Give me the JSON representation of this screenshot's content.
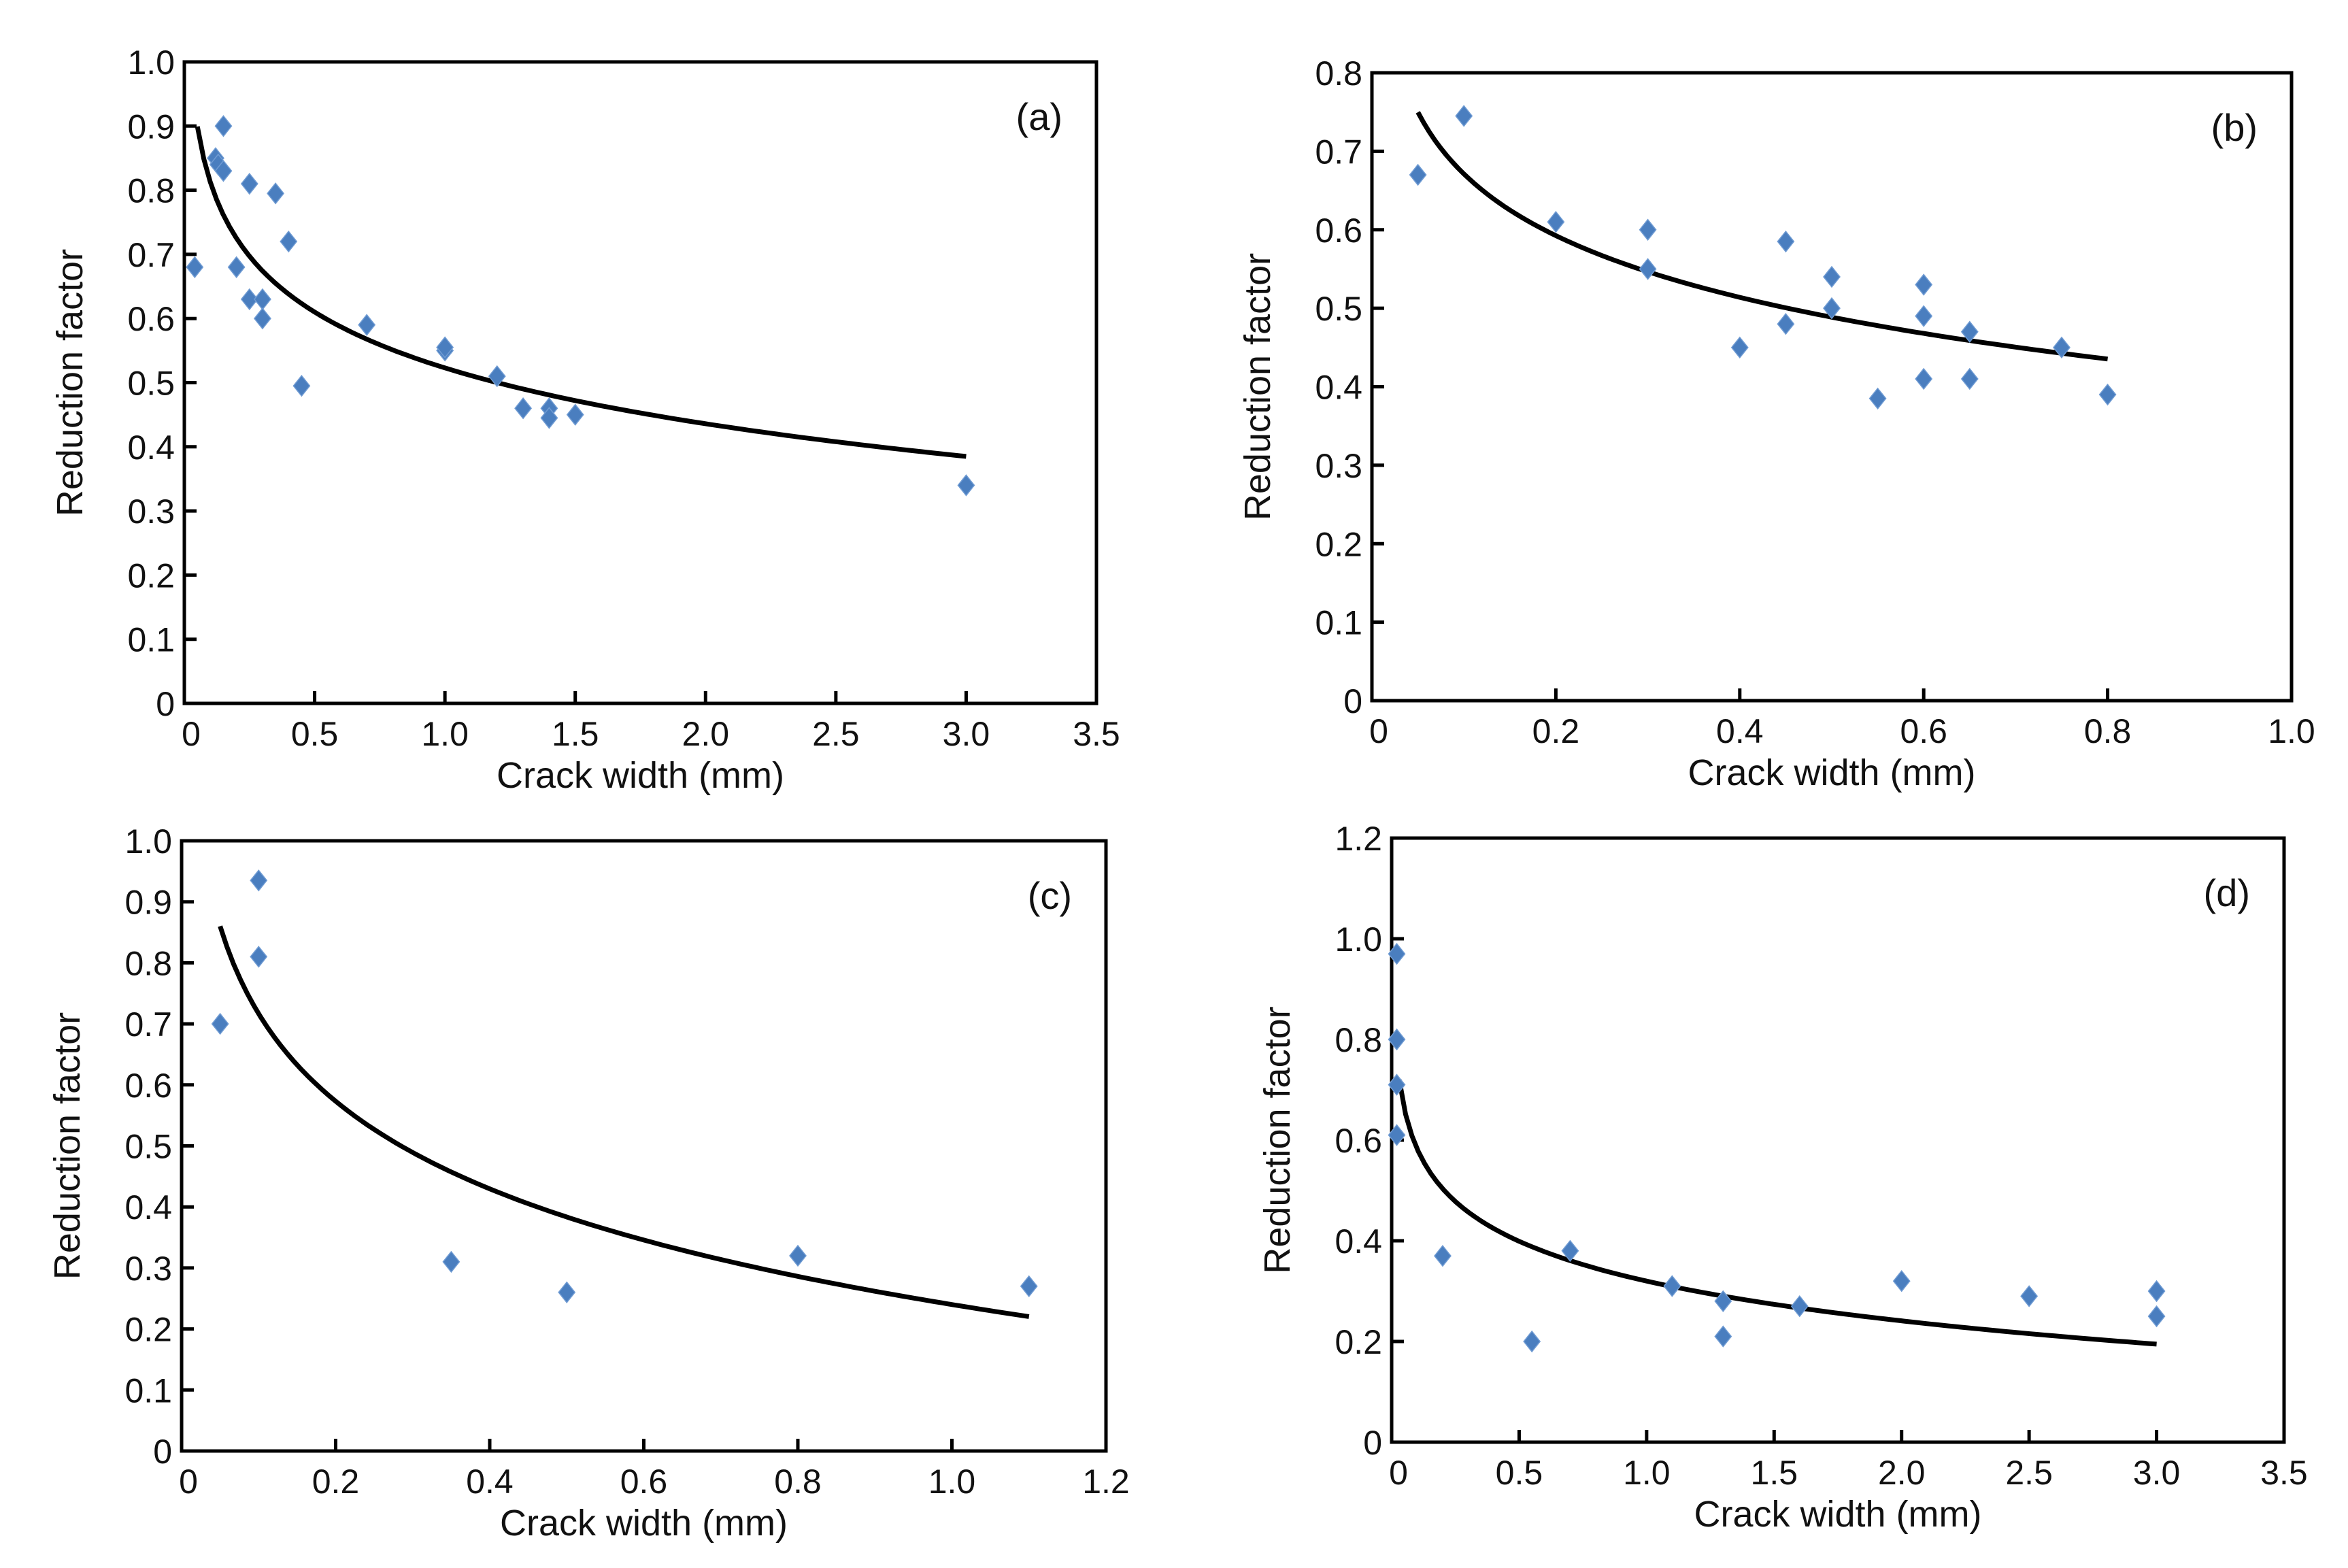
{
  "colors": {
    "marker": "#4a7ebf",
    "curve": "#000000",
    "axis": "#000000"
  },
  "chart_data": [
    {
      "type": "scatter",
      "panel_label": "(a)",
      "xlabel": "Crack width (mm)",
      "ylabel": "Reduction factor",
      "xlim": [
        0,
        3.5
      ],
      "ylim": [
        0,
        1.0
      ],
      "xticks": [
        0,
        0.5,
        1.0,
        1.5,
        2.0,
        2.5,
        3.0,
        3.5
      ],
      "xtick_labels": [
        "0",
        "0.5",
        "1.0",
        "1.5",
        "2.0",
        "2.5",
        "3.0",
        "3.5"
      ],
      "yticks": [
        0,
        0.1,
        0.2,
        0.3,
        0.4,
        0.5,
        0.6,
        0.7,
        0.8,
        0.9,
        1.0
      ],
      "ytick_labels": [
        "0",
        "0.1",
        "0.2",
        "0.3",
        "0.4",
        "0.5",
        "0.6",
        "0.7",
        "0.8",
        "0.9",
        "1.0"
      ],
      "points": [
        [
          0.04,
          0.68
        ],
        [
          0.12,
          0.85
        ],
        [
          0.13,
          0.84
        ],
        [
          0.15,
          0.83
        ],
        [
          0.15,
          0.9
        ],
        [
          0.2,
          0.68
        ],
        [
          0.25,
          0.81
        ],
        [
          0.25,
          0.63
        ],
        [
          0.3,
          0.63
        ],
        [
          0.3,
          0.6
        ],
        [
          0.35,
          0.795
        ],
        [
          0.4,
          0.72
        ],
        [
          0.45,
          0.495
        ],
        [
          0.7,
          0.59
        ],
        [
          1.0,
          0.55
        ],
        [
          1.0,
          0.555
        ],
        [
          1.2,
          0.51
        ],
        [
          1.3,
          0.46
        ],
        [
          1.4,
          0.46
        ],
        [
          1.4,
          0.445
        ],
        [
          1.5,
          0.45
        ],
        [
          3.0,
          0.34
        ]
      ],
      "fit": {
        "form": "a - b*ln(x)",
        "a": 0.523,
        "b": 0.1256,
        "x_range": [
          0.05,
          3.0
        ]
      }
    },
    {
      "type": "scatter",
      "panel_label": "(b)",
      "xlabel": "Crack width (mm)",
      "ylabel": "Reduction factor",
      "xlim": [
        0,
        1.0
      ],
      "ylim": [
        0,
        0.8
      ],
      "xticks": [
        0,
        0.2,
        0.4,
        0.6,
        0.8,
        1.0
      ],
      "xtick_labels": [
        "0",
        "0.2",
        "0.4",
        "0.6",
        "0.8",
        "1.0"
      ],
      "yticks": [
        0,
        0.1,
        0.2,
        0.3,
        0.4,
        0.5,
        0.6,
        0.7,
        0.8
      ],
      "ytick_labels": [
        "0",
        "0.1",
        "0.2",
        "0.3",
        "0.4",
        "0.5",
        "0.6",
        "0.7",
        "0.8"
      ],
      "points": [
        [
          0.05,
          0.67
        ],
        [
          0.1,
          0.745
        ],
        [
          0.2,
          0.61
        ],
        [
          0.3,
          0.6
        ],
        [
          0.3,
          0.55
        ],
        [
          0.4,
          0.45
        ],
        [
          0.45,
          0.585
        ],
        [
          0.45,
          0.48
        ],
        [
          0.5,
          0.54
        ],
        [
          0.5,
          0.5
        ],
        [
          0.55,
          0.385
        ],
        [
          0.6,
          0.53
        ],
        [
          0.6,
          0.49
        ],
        [
          0.6,
          0.41
        ],
        [
          0.65,
          0.47
        ],
        [
          0.65,
          0.41
        ],
        [
          0.75,
          0.45
        ],
        [
          0.8,
          0.39
        ]
      ],
      "fit": {
        "form": "a - b*ln(x)",
        "a": 0.41,
        "b": 0.1134,
        "x_range": [
          0.05,
          0.8
        ]
      }
    },
    {
      "type": "scatter",
      "panel_label": "(c)",
      "xlabel": "Crack width (mm)",
      "ylabel": "Reduction factor",
      "xlim": [
        0,
        1.2
      ],
      "ylim": [
        0,
        1.0
      ],
      "xticks": [
        0,
        0.2,
        0.4,
        0.6,
        0.8,
        1.0,
        1.2
      ],
      "xtick_labels": [
        "0",
        "0.2",
        "0.4",
        "0.6",
        "0.8",
        "1.0",
        "1.2"
      ],
      "yticks": [
        0,
        0.1,
        0.2,
        0.3,
        0.4,
        0.5,
        0.6,
        0.7,
        0.8,
        0.9,
        1.0
      ],
      "ytick_labels": [
        "0",
        "0.1",
        "0.2",
        "0.3",
        "0.4",
        "0.5",
        "0.6",
        "0.7",
        "0.8",
        "0.9",
        "1.0"
      ],
      "points": [
        [
          0.05,
          0.7
        ],
        [
          0.1,
          0.935
        ],
        [
          0.1,
          0.81
        ],
        [
          0.35,
          0.31
        ],
        [
          0.5,
          0.26
        ],
        [
          0.8,
          0.32
        ],
        [
          1.1,
          0.27
        ]
      ],
      "fit": {
        "form": "a - b*ln(x)",
        "a": 0.24,
        "b": 0.207,
        "x_range": [
          0.05,
          1.1
        ]
      }
    },
    {
      "type": "scatter",
      "panel_label": "(d)",
      "xlabel": "Crack width (mm)",
      "ylabel": "Reduction factor",
      "xlim": [
        0,
        3.5
      ],
      "ylim": [
        0,
        1.2
      ],
      "xticks": [
        0,
        0.5,
        1.0,
        1.5,
        2.0,
        2.5,
        3.0,
        3.5
      ],
      "xtick_labels": [
        "0",
        "0.5",
        "1.0",
        "1.5",
        "2.0",
        "2.5",
        "3.0",
        "3.5"
      ],
      "yticks": [
        0,
        0.2,
        0.4,
        0.6,
        0.8,
        1.0,
        1.2
      ],
      "ytick_labels": [
        "0",
        "0.2",
        "0.4",
        "0.6",
        "0.8",
        "1.0",
        "1.2"
      ],
      "points": [
        [
          0.02,
          0.97
        ],
        [
          0.02,
          0.8
        ],
        [
          0.02,
          0.71
        ],
        [
          0.02,
          0.61
        ],
        [
          0.2,
          0.37
        ],
        [
          0.55,
          0.2
        ],
        [
          0.7,
          0.38
        ],
        [
          1.1,
          0.31
        ],
        [
          1.3,
          0.28
        ],
        [
          1.3,
          0.21
        ],
        [
          1.6,
          0.27
        ],
        [
          2.0,
          0.32
        ],
        [
          2.5,
          0.29
        ],
        [
          3.0,
          0.3
        ],
        [
          3.0,
          0.25
        ]
      ],
      "fit": {
        "form": "a - b*ln(x)",
        "a": 0.32,
        "b": 0.114,
        "x_range": [
          0.03,
          3.0
        ]
      }
    }
  ]
}
